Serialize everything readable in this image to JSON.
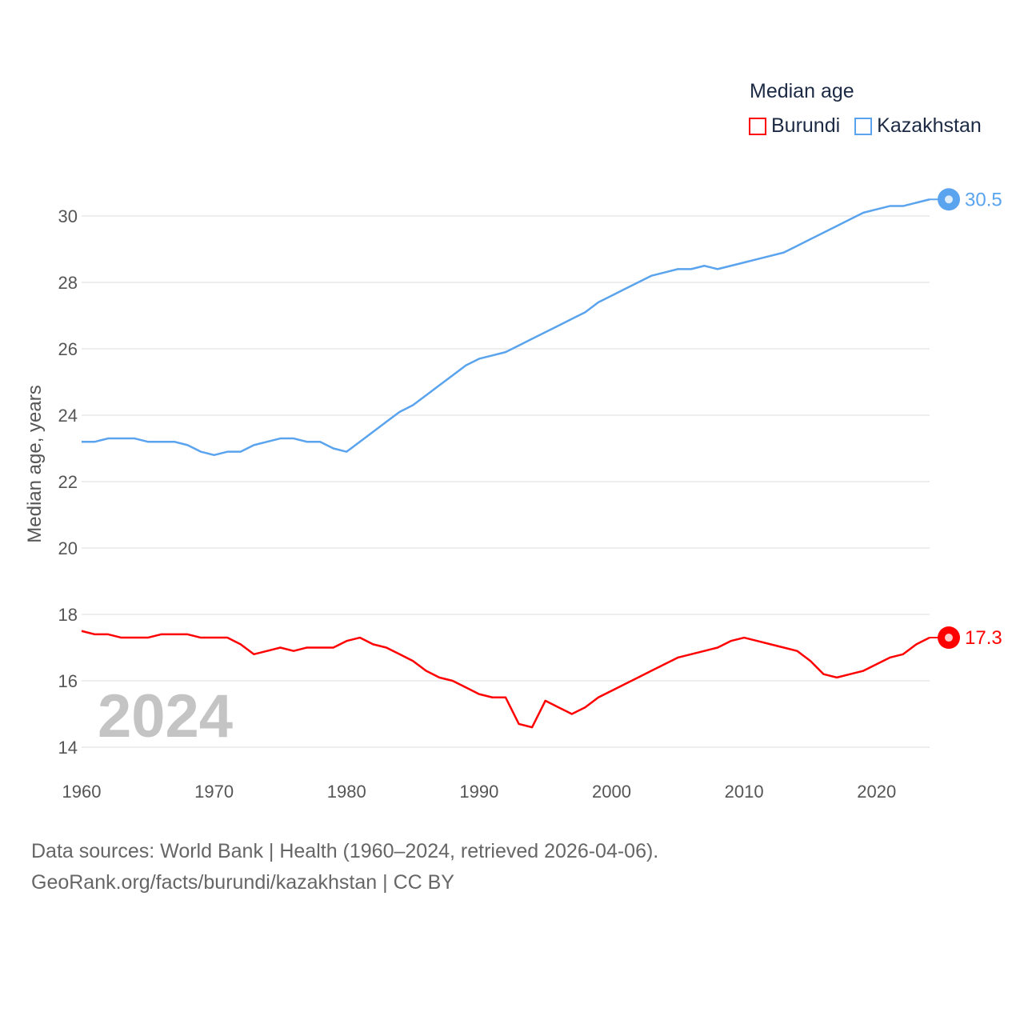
{
  "chart_data": {
    "type": "line",
    "title": "Median age",
    "xlabel": "",
    "ylabel": "Median age, years",
    "xlim": [
      1960,
      2024
    ],
    "ylim": [
      14,
      30
    ],
    "grid": true,
    "legend_placement": "top-right",
    "x_ticks": [
      "1960",
      "1970",
      "1980",
      "1990",
      "2000",
      "2010",
      "2020"
    ],
    "y_ticks": [
      "14",
      "16",
      "18",
      "20",
      "22",
      "24",
      "26",
      "28",
      "30"
    ],
    "x_start": 1960,
    "series": [
      {
        "name": "Burundi",
        "color": "#ff0000",
        "end_label": "17.3",
        "values": [
          17.5,
          17.4,
          17.4,
          17.3,
          17.3,
          17.3,
          17.4,
          17.4,
          17.4,
          17.3,
          17.3,
          17.3,
          17.1,
          16.8,
          16.9,
          17.0,
          16.9,
          17.0,
          17.0,
          17.0,
          17.2,
          17.3,
          17.1,
          17.0,
          16.8,
          16.6,
          16.3,
          16.1,
          16.0,
          15.8,
          15.6,
          15.5,
          15.5,
          14.7,
          14.6,
          15.4,
          15.2,
          15.0,
          15.2,
          15.5,
          15.7,
          15.9,
          16.1,
          16.3,
          16.5,
          16.7,
          16.8,
          16.9,
          17.0,
          17.2,
          17.3,
          17.2,
          17.1,
          17.0,
          16.9,
          16.6,
          16.2,
          16.1,
          16.2,
          16.3,
          16.5,
          16.7,
          16.8,
          17.1,
          17.3
        ]
      },
      {
        "name": "Kazakhstan",
        "color": "#5aa3ee",
        "end_label": "30.5",
        "values": [
          23.2,
          23.2,
          23.3,
          23.3,
          23.3,
          23.2,
          23.2,
          23.2,
          23.1,
          22.9,
          22.8,
          22.9,
          22.9,
          23.1,
          23.2,
          23.3,
          23.3,
          23.2,
          23.2,
          23.0,
          22.9,
          23.2,
          23.5,
          23.8,
          24.1,
          24.3,
          24.6,
          24.9,
          25.2,
          25.5,
          25.7,
          25.8,
          25.9,
          26.1,
          26.3,
          26.5,
          26.7,
          26.9,
          27.1,
          27.4,
          27.6,
          27.8,
          28.0,
          28.2,
          28.3,
          28.4,
          28.4,
          28.5,
          28.4,
          28.5,
          28.6,
          28.7,
          28.8,
          28.9,
          29.1,
          29.3,
          29.5,
          29.7,
          29.9,
          30.1,
          30.2,
          30.3,
          30.3,
          30.4,
          30.5
        ]
      }
    ],
    "current_year": "2024"
  },
  "legend": {
    "title": "Median age",
    "items": [
      "Burundi",
      "Kazakhstan"
    ]
  },
  "source": {
    "line1": "Data sources: World Bank | Health (1960–2024, retrieved 2026-04-06).",
    "line2": "GeoRank.org/facts/burundi/kazakhstan | CC BY"
  }
}
